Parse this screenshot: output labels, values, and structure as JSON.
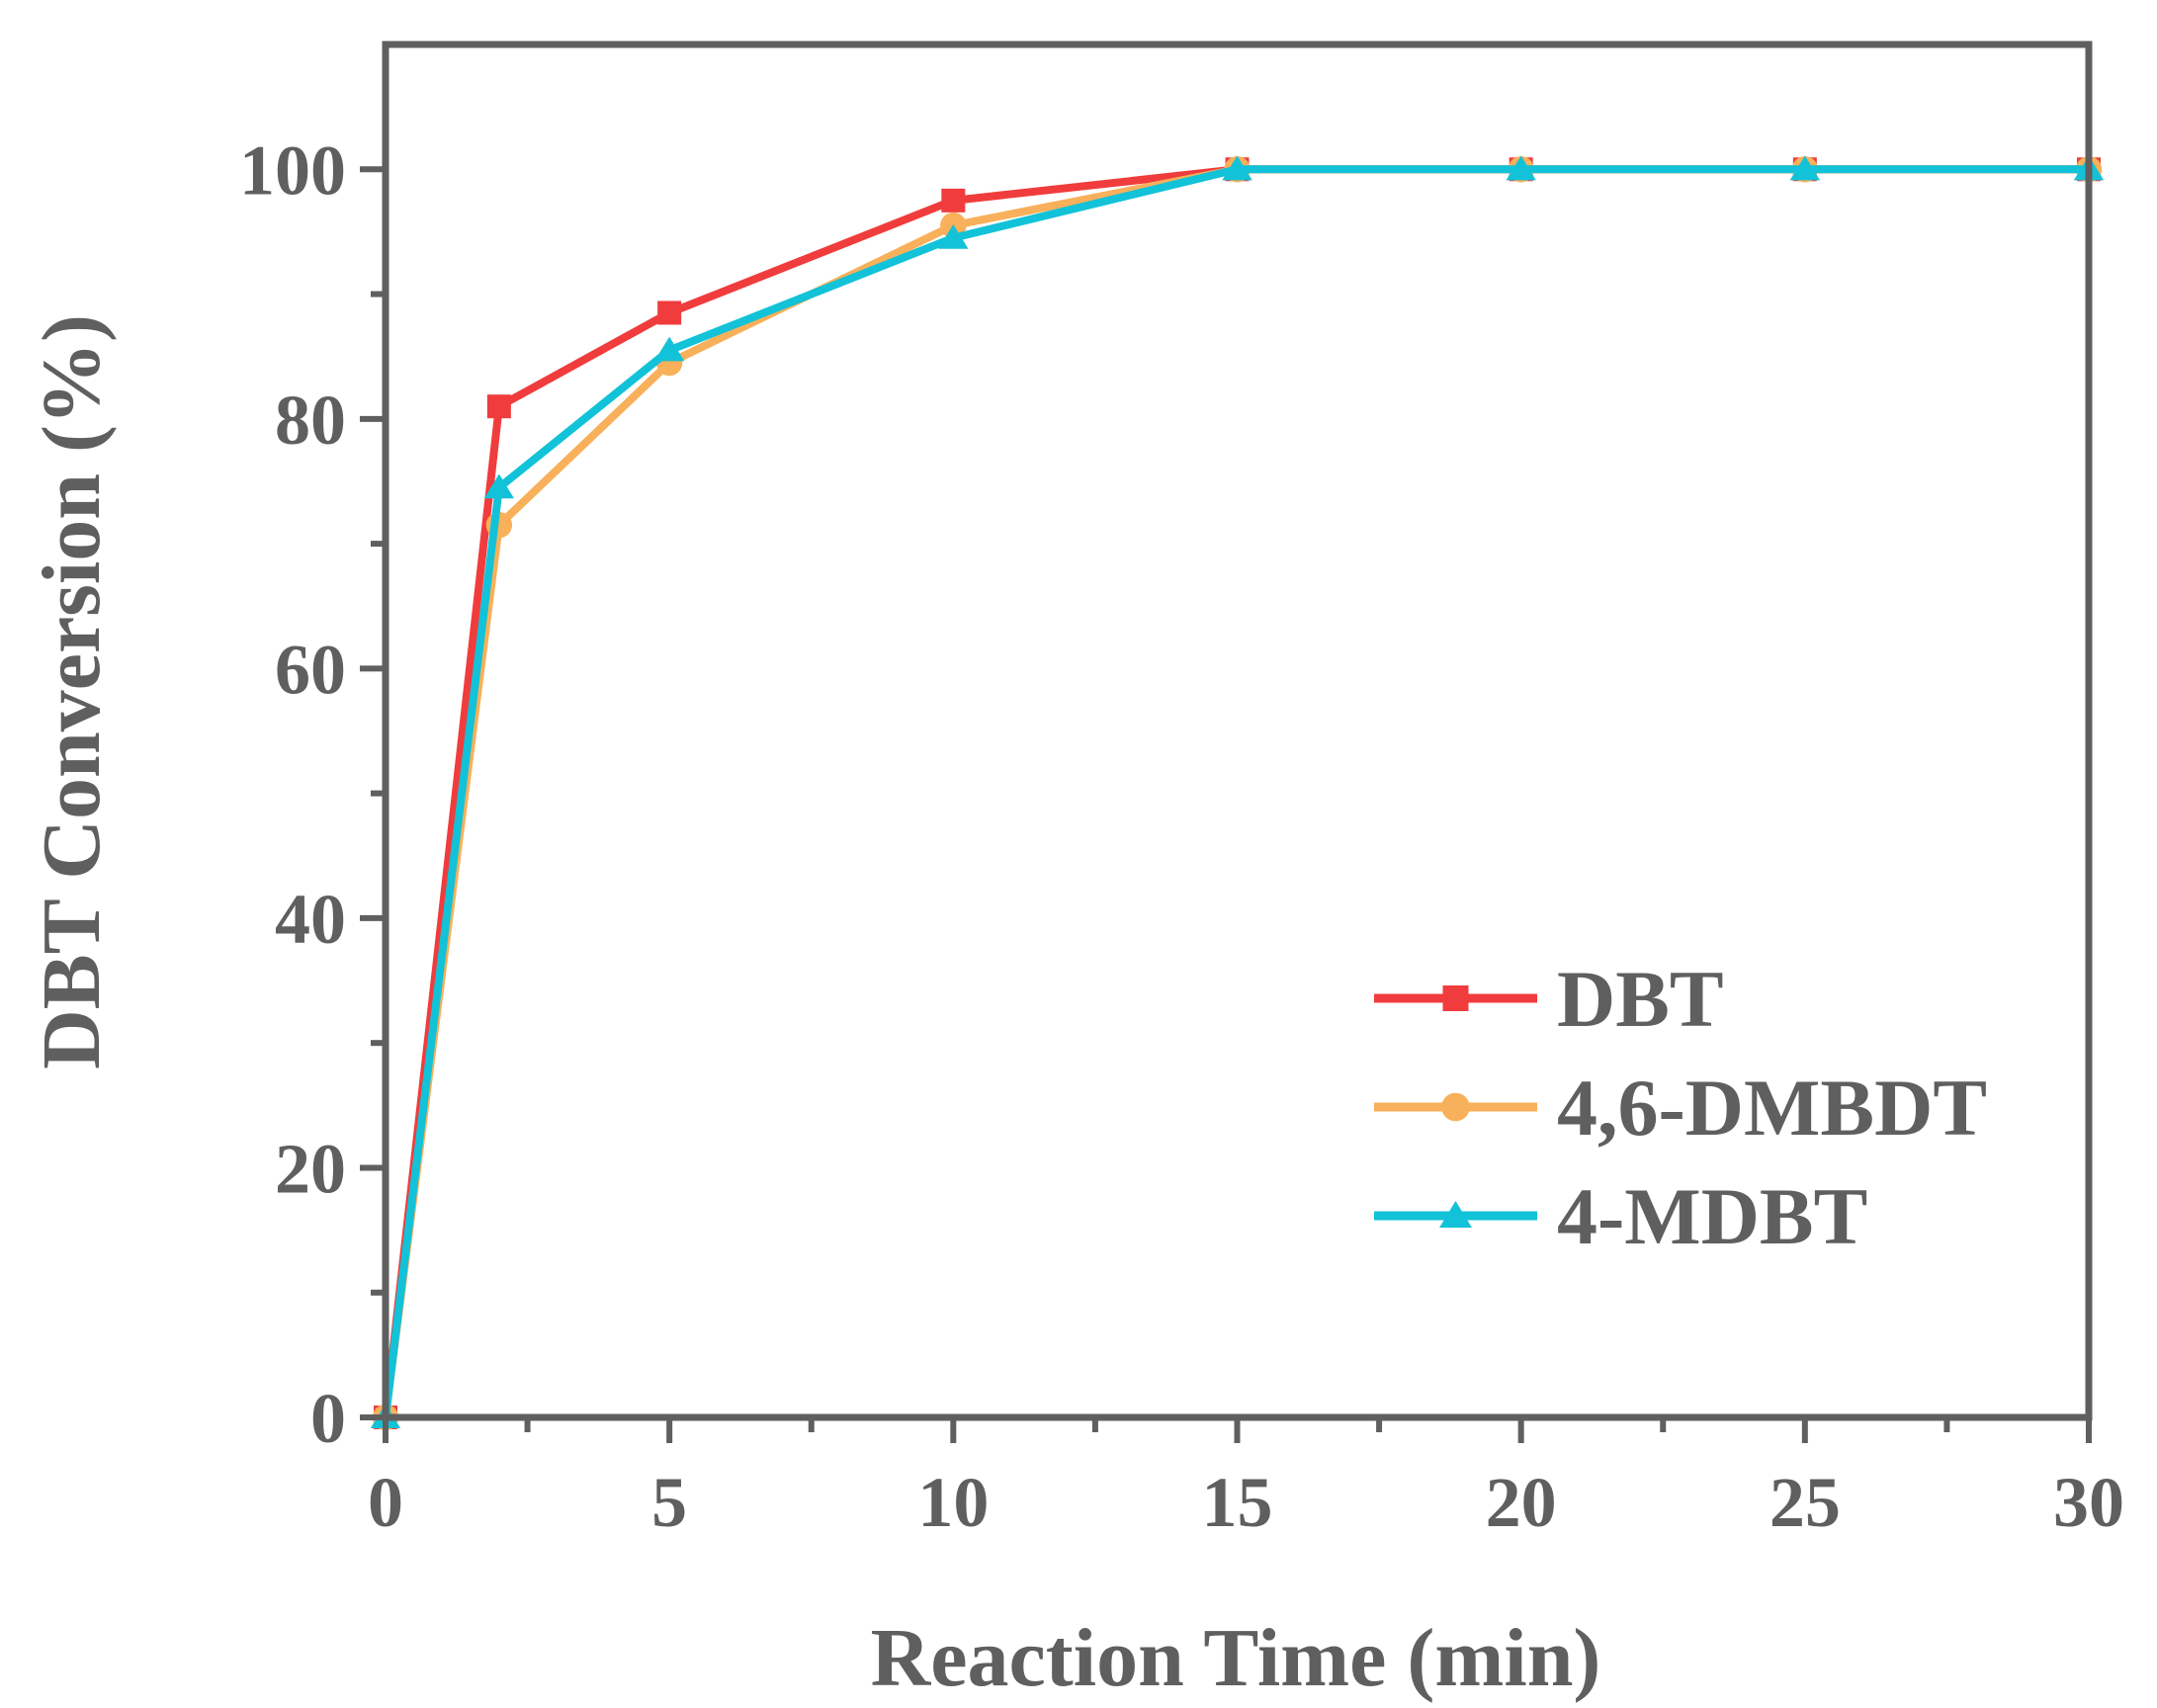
{
  "chart_data": {
    "type": "line",
    "xlabel": "Reaction Time (min)",
    "ylabel": "DBT Conversion (%)",
    "xlim": [
      0,
      30
    ],
    "ylim": [
      0,
      110
    ],
    "xticks": [
      0,
      5,
      10,
      15,
      20,
      25,
      30
    ],
    "xtick_labels": [
      "0",
      "5",
      "10",
      "15",
      "20",
      "25",
      "30"
    ],
    "yticks": [
      0,
      20,
      40,
      60,
      80,
      100
    ],
    "ytick_labels": [
      "0",
      "20",
      "40",
      "60",
      "80",
      "100"
    ],
    "grid": false,
    "legend_position": "bottom-right",
    "x": [
      0,
      2,
      5,
      10,
      15,
      20,
      25,
      30
    ],
    "series": [
      {
        "name": "DBT",
        "color": "#f03c3c",
        "marker": "square",
        "values": [
          0,
          81,
          88.5,
          97.5,
          100,
          100,
          100,
          100
        ]
      },
      {
        "name": "4,6-DMBDT",
        "color": "#f8b05a",
        "marker": "circle",
        "values": [
          0,
          71.5,
          84.5,
          95.5,
          100,
          100,
          100,
          100
        ]
      },
      {
        "name": "4-MDBT",
        "color": "#12c2d8",
        "marker": "triangle",
        "values": [
          0,
          74.5,
          85.5,
          94.5,
          100,
          100,
          100,
          100
        ]
      }
    ]
  }
}
